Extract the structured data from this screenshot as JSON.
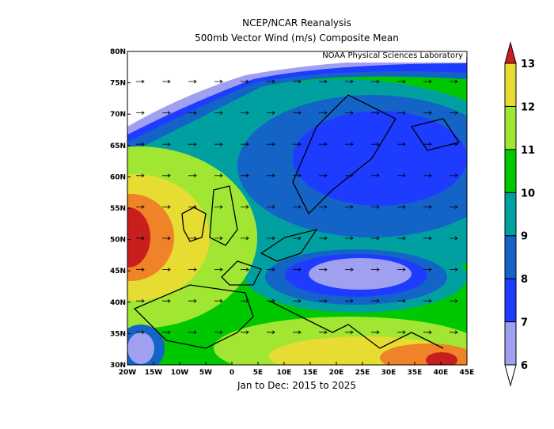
{
  "header": {
    "title": "NCEP/NCAR Reanalysis",
    "subtitle": "500mb Vector Wind (m/s) Composite Mean"
  },
  "credit": "NOAA Physical Sciences Laboratory",
  "footer": "Jan to Dec: 2015 to 2025",
  "map": {
    "xlim": [
      -20,
      45
    ],
    "ylim": [
      30,
      80
    ],
    "lon_ticks": [
      {
        "value": -20,
        "label": "20W"
      },
      {
        "value": -15,
        "label": "15W"
      },
      {
        "value": -10,
        "label": "10W"
      },
      {
        "value": -5,
        "label": "5W"
      },
      0,
      {
        "value": 5,
        "label": "5E"
      },
      {
        "value": 10,
        "label": "10E"
      },
      {
        "value": 15,
        "label": "15E"
      },
      {
        "value": 20,
        "label": "20E"
      },
      {
        "value": 25,
        "label": "25E"
      },
      {
        "value": 30,
        "label": "30E"
      },
      {
        "value": 35,
        "label": "35E"
      },
      {
        "value": 40,
        "label": "40E"
      },
      {
        "value": 45,
        "label": "45E"
      }
    ],
    "lat_ticks": [
      {
        "value": 30,
        "label": "30N"
      },
      {
        "value": 35,
        "label": "35N"
      },
      {
        "value": 40,
        "label": "40N"
      },
      {
        "value": 45,
        "label": "45N"
      },
      {
        "value": 50,
        "label": "50N"
      },
      {
        "value": 55,
        "label": "55N"
      },
      {
        "value": 60,
        "label": "60N"
      },
      {
        "value": 65,
        "label": "65N"
      },
      {
        "value": 70,
        "label": "70N"
      },
      {
        "value": 75,
        "label": "75N"
      },
      {
        "value": 80,
        "label": "80N"
      }
    ]
  },
  "colorbar": {
    "ticks": [
      6,
      7,
      8,
      9,
      10,
      11,
      12,
      13
    ],
    "colors": [
      "#ffffff",
      "#a0a0f0",
      "#1e3cff",
      "#1464c8",
      "#00a0a0",
      "#00c800",
      "#a0e632",
      "#e6dc32",
      "#f08228",
      "#c81e1e"
    ]
  }
}
